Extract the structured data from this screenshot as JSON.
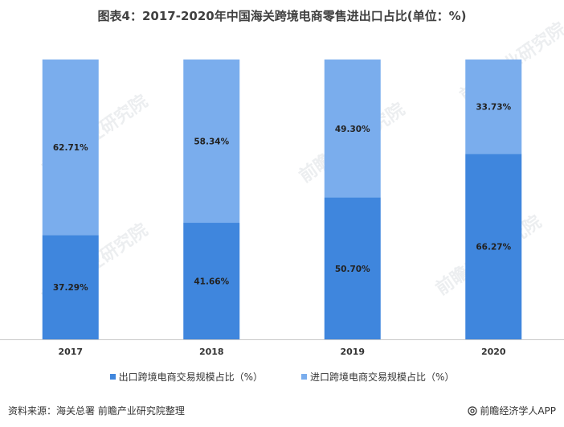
{
  "title": "图表4：2017-2020年中国海关跨境电商零售进出口占比(单位：%)",
  "colors": {
    "export": "#3f86dd",
    "import": "#7aaded",
    "axis": "#c8c8c8"
  },
  "chart_data": {
    "type": "bar",
    "stacked": true,
    "percent": true,
    "categories": [
      "2017",
      "2018",
      "2019",
      "2020"
    ],
    "series": [
      {
        "name": "出口跨境电商交易规模占比（%）",
        "values": [
          37.29,
          41.66,
          50.7,
          66.27
        ],
        "labels": [
          "37.29%",
          "41.66%",
          "50.70%",
          "66.27%"
        ]
      },
      {
        "name": "进口跨境电商交易规模占比（%）",
        "values": [
          62.71,
          58.34,
          49.3,
          33.73
        ],
        "labels": [
          "62.71%",
          "58.34%",
          "49.30%",
          "33.73%"
        ]
      }
    ],
    "ylim": [
      0,
      100
    ]
  },
  "source": "资料来源：海关总署 前瞻产业研究院整理",
  "brand": "前瞻经济学人APP",
  "brand_icon": "at-sign-icon",
  "watermark": "前瞻产业研究院"
}
